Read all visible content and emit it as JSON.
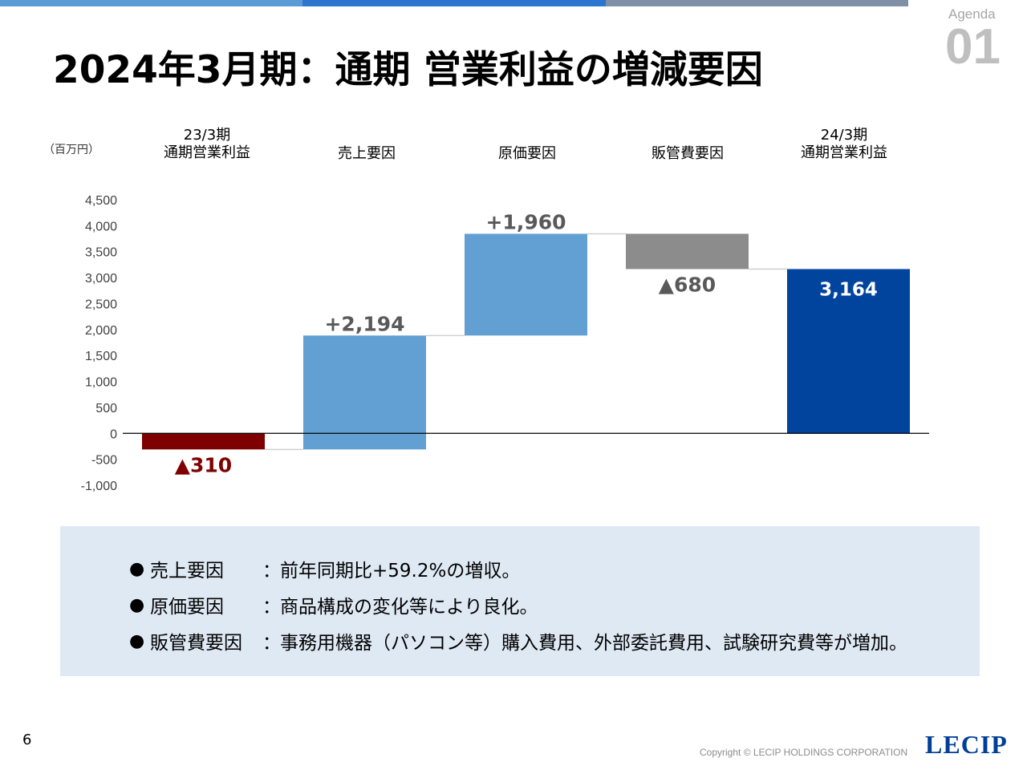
{
  "header": {
    "agenda_label": "Agenda",
    "agenda_number": "01",
    "title": "2024年3月期：通期 営業利益の増減要因",
    "bar_colors": [
      "#5b9bd5",
      "#2e75d0",
      "#7f8fa6"
    ]
  },
  "chart_data": {
    "type": "waterfall",
    "unit_label": "（百万円）",
    "categories": [
      {
        "line1": "23/3期",
        "line2": "通期営業利益"
      },
      {
        "line1": "",
        "line2": "売上要因"
      },
      {
        "line1": "",
        "line2": "原価要因"
      },
      {
        "line1": "",
        "line2": "販管費要因"
      },
      {
        "line1": "24/3期",
        "line2": "通期営業利益"
      }
    ],
    "bars": [
      {
        "base": 0,
        "value": -310,
        "label": "▲310",
        "color": "#7f0000",
        "label_color": "#7f0000"
      },
      {
        "base": -310,
        "value": 2194,
        "label": "+2,194",
        "color": "#629fd3",
        "label_color": "#595959"
      },
      {
        "base": 1884,
        "value": 1960,
        "label": "+1,960",
        "color": "#629fd3",
        "label_color": "#595959"
      },
      {
        "base": 3844,
        "value": -680,
        "label": "▲680",
        "color": "#8c8c8c",
        "label_color": "#595959"
      },
      {
        "base": 0,
        "value": 3164,
        "label": "3,164",
        "color": "#00449e",
        "label_color": "#ffffff"
      }
    ],
    "yticks": [
      "4,500",
      "4,000",
      "3,500",
      "3,000",
      "2,500",
      "2,000",
      "1,500",
      "1,000",
      "500",
      "0",
      "-500",
      "-1,000"
    ],
    "ylim": [
      -1000,
      4500
    ],
    "grid": false
  },
  "summary": {
    "bullet": "●",
    "colon": "：",
    "rows": [
      {
        "label": "売上要因",
        "text": "前年同期比+59.2%の増収。"
      },
      {
        "label": "原価要因",
        "text": "商品構成の変化等により良化。"
      },
      {
        "label": "販管費要因",
        "text": "事務用機器（パソコン等）購入費用、外部委託費用、試験研究費等が増加。"
      }
    ]
  },
  "footer": {
    "page_number": "6",
    "copyright": "Copyright © LECIP HOLDINGS CORPORATION",
    "logo": "LECIP"
  }
}
